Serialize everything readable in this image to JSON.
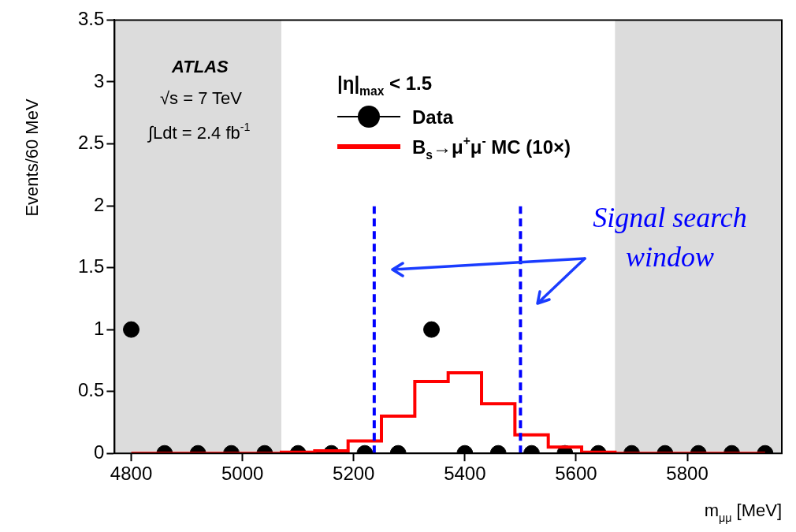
{
  "chart_data": {
    "type": "scatter",
    "xlabel": "m$_{μμ}$ [MeV]",
    "ylabel": "Events/60 MeV",
    "legend_title": "|η|$_{max}$ < 1.5",
    "legend": "top",
    "xlim": [
      4770,
      5970
    ],
    "xticks": [
      4800,
      5000,
      5200,
      5400,
      5600,
      5800
    ],
    "ylim": [
      0,
      3.5
    ],
    "yticks": [
      0,
      0.5,
      1,
      1.5,
      2,
      2.5,
      3,
      3.5
    ],
    "x": [
      4800,
      4860,
      4920,
      4980,
      5040,
      5100,
      5160,
      5220,
      5280,
      5340,
      5400,
      5460,
      5520,
      5580,
      5640,
      5700,
      5760,
      5820,
      5880,
      5940
    ],
    "series": [
      {
        "name": "Data",
        "type": "scatter",
        "color": "#000000",
        "marker": "circle",
        "values": [
          1,
          0,
          0,
          0,
          0,
          0,
          0,
          0,
          0,
          1,
          0,
          0,
          0,
          0,
          0,
          0,
          0,
          0,
          0,
          0
        ]
      },
      {
        "name": "B$_{s}$→μ$^{+}$μ$^{-}$ MC (10×)",
        "type": "step",
        "color": "#ff0000",
        "values": [
          0,
          0,
          0,
          0,
          0,
          0.01,
          0.02,
          0.1,
          0.3,
          0.58,
          0.65,
          0.4,
          0.15,
          0.05,
          0.01,
          0,
          0,
          0,
          0,
          0
        ]
      }
    ],
    "bands": [
      {
        "axis": "x",
        "from": 4770,
        "to": 5070,
        "color": "#dcdcdc"
      },
      {
        "axis": "x",
        "from": 5670,
        "to": 5970,
        "color": "#dcdcdc"
      }
    ],
    "ref_lines": [
      {
        "axis": "x",
        "value": 5237,
        "color": "#0000ff",
        "line_style": "dashed"
      },
      {
        "axis": "x",
        "value": 5500,
        "color": "#0000ff",
        "line_style": "dashed"
      }
    ],
    "annotations": [
      "ATLAS",
      "√s = 7 TeV",
      "∫Ldt = 2.4 fb$^{-1}$",
      "Signal search",
      "window"
    ]
  }
}
